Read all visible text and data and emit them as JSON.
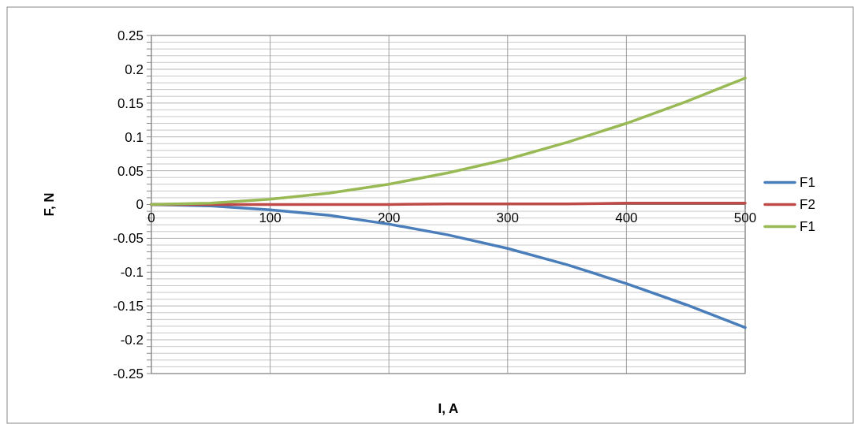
{
  "chart_data": {
    "type": "line",
    "xlabel": "I, A",
    "ylabel": "F, N",
    "x": [
      0,
      50,
      100,
      150,
      200,
      250,
      300,
      350,
      400,
      450,
      500
    ],
    "series": [
      {
        "name": "F1",
        "color": "#4a7ebb",
        "values": [
          0,
          -0.002,
          -0.008,
          -0.016,
          -0.029,
          -0.045,
          -0.065,
          -0.089,
          -0.117,
          -0.148,
          -0.182
        ]
      },
      {
        "name": "F2",
        "color": "#be4b48",
        "values": [
          0,
          0,
          0,
          0,
          0,
          0.001,
          0.001,
          0.001,
          0.002,
          0.002,
          0.002
        ]
      },
      {
        "name": "F1",
        "color": "#98b954",
        "values": [
          0,
          0.002,
          0.008,
          0.017,
          0.03,
          0.047,
          0.067,
          0.092,
          0.12,
          0.152,
          0.187
        ]
      }
    ],
    "xlim": [
      0,
      500
    ],
    "xticks": [
      0,
      100,
      200,
      300,
      400,
      500
    ],
    "ylim": [
      -0.25,
      0.25
    ],
    "yticks": [
      -0.25,
      {
        "value": -0.24,
        "label": null
      },
      {
        "value": -0.23,
        "label": null
      },
      {
        "value": -0.22,
        "label": null
      },
      {
        "value": -0.21,
        "label": null
      },
      -0.2,
      {
        "value": -0.19,
        "label": null
      },
      {
        "value": -0.18,
        "label": null
      },
      {
        "value": -0.17,
        "label": null
      },
      {
        "value": -0.16,
        "label": null
      },
      -0.15,
      {
        "value": -0.14,
        "label": null
      },
      {
        "value": -0.13,
        "label": null
      },
      {
        "value": -0.12,
        "label": null
      },
      {
        "value": -0.11,
        "label": null
      },
      -0.1,
      {
        "value": -0.09,
        "label": null
      },
      {
        "value": -0.08,
        "label": null
      },
      {
        "value": -0.07,
        "label": null
      },
      {
        "value": -0.06,
        "label": null
      },
      -0.05,
      {
        "value": -0.04,
        "label": null
      },
      {
        "value": -0.03,
        "label": null
      },
      {
        "value": -0.02,
        "label": null
      },
      {
        "value": -0.01,
        "label": null
      },
      0,
      {
        "value": 0.01,
        "label": null
      },
      {
        "value": 0.02,
        "label": null
      },
      {
        "value": 0.03,
        "label": null
      },
      {
        "value": 0.04,
        "label": null
      },
      0.05,
      {
        "value": 0.06,
        "label": null
      },
      {
        "value": 0.07,
        "label": null
      },
      {
        "value": 0.08,
        "label": null
      },
      {
        "value": 0.09,
        "label": null
      },
      0.1,
      {
        "value": 0.11,
        "label": null
      },
      {
        "value": 0.12,
        "label": null
      },
      {
        "value": 0.13,
        "label": null
      },
      {
        "value": 0.14,
        "label": null
      },
      0.15,
      {
        "value": 0.16,
        "label": null
      },
      {
        "value": 0.17,
        "label": null
      },
      {
        "value": 0.18,
        "label": null
      },
      {
        "value": 0.19,
        "label": null
      },
      0.2,
      {
        "value": 0.21,
        "label": null
      },
      {
        "value": 0.22,
        "label": null
      },
      {
        "value": 0.23,
        "label": null
      },
      {
        "value": 0.24,
        "label": null
      },
      0.25
    ],
    "grid": true,
    "legend": "right",
    "marker": "none",
    "line_style": "solid"
  }
}
